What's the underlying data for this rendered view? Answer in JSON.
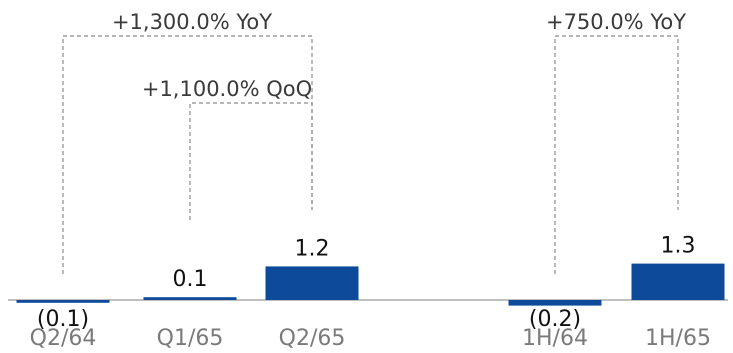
{
  "chart_data": {
    "type": "bar",
    "categories": [
      "Q2/64",
      "Q1/65",
      "Q2/65",
      "1H/64",
      "1H/65"
    ],
    "values": [
      -0.1,
      0.1,
      1.2,
      -0.2,
      1.3
    ],
    "value_labels": [
      "(0.1)",
      "0.1",
      "1.2",
      "(0.2)",
      "1.3"
    ],
    "ylim": [
      -0.2,
      1.3
    ],
    "grid": false,
    "colors": {
      "bar": "#0d4a9a"
    },
    "annotations": [
      {
        "text": "+1,300.0% YoY",
        "from": "Q2/64",
        "to": "Q2/65"
      },
      {
        "text": "+1,100.0% QoQ",
        "from": "Q1/65",
        "to": "Q2/65"
      },
      {
        "text": "+750.0% YoY",
        "from": "1H/64",
        "to": "1H/65"
      }
    ]
  }
}
